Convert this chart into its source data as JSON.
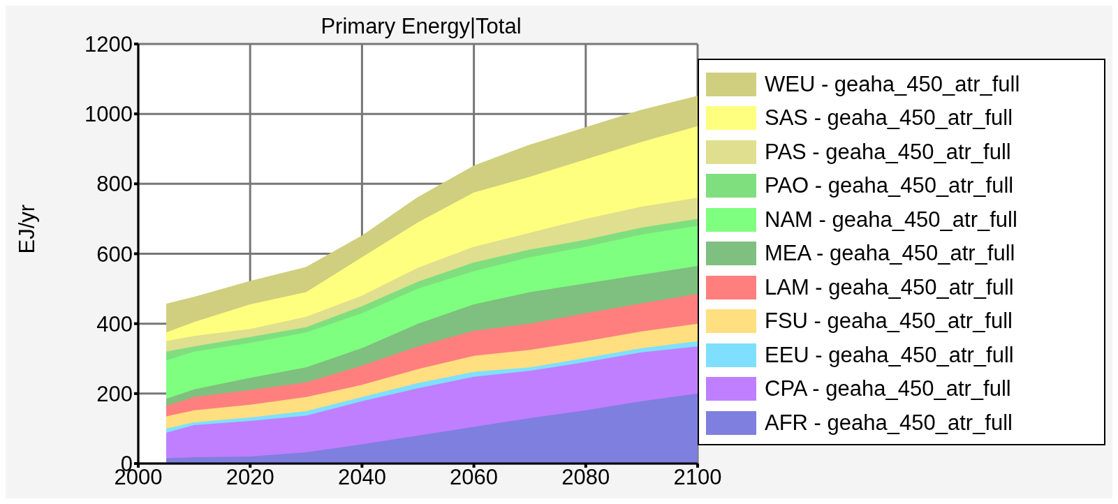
{
  "chart_data": {
    "type": "area",
    "stacked": true,
    "title": "Primary Energy|Total",
    "ylabel": "EJ/yr",
    "x": [
      2005,
      2010,
      2020,
      2030,
      2040,
      2050,
      2060,
      2070,
      2080,
      2090,
      2100
    ],
    "xlim": [
      2000,
      2100
    ],
    "xticks": [
      2000,
      2020,
      2040,
      2060,
      2080,
      2100
    ],
    "ylim": [
      0,
      1200
    ],
    "yticks": [
      0,
      200,
      400,
      600,
      800,
      1000,
      1200
    ],
    "grid": true,
    "legend": "right",
    "series": [
      {
        "name": "AFR - geaha_450_atr_full",
        "color": "#7f7fdf",
        "values": [
          15,
          18,
          20,
          32,
          55,
          80,
          105,
          130,
          152,
          178,
          200
        ]
      },
      {
        "name": "CPA - geaha_450_atr_full",
        "color": "#bf7fff",
        "values": [
          73,
          92,
          102,
          105,
          123,
          135,
          143,
          135,
          138,
          140,
          135
        ]
      },
      {
        "name": "EEU - geaha_450_atr_full",
        "color": "#7fdfff",
        "values": [
          12,
          8,
          10,
          13,
          12,
          15,
          14,
          10,
          12,
          12,
          15
        ]
      },
      {
        "name": "FSU - geaha_450_atr_full",
        "color": "#ffdf7f",
        "values": [
          35,
          34,
          36,
          40,
          35,
          40,
          46,
          50,
          48,
          48,
          50
        ]
      },
      {
        "name": "LAM - geaha_450_atr_full",
        "color": "#ff7f7f",
        "values": [
          30,
          38,
          42,
          42,
          55,
          65,
          72,
          75,
          80,
          80,
          85
        ]
      },
      {
        "name": "MEA - geaha_450_atr_full",
        "color": "#7fbf7f",
        "values": [
          20,
          22,
          35,
          43,
          50,
          65,
          75,
          90,
          85,
          82,
          80
        ]
      },
      {
        "name": "NAM - geaha_450_atr_full",
        "color": "#7fff7f",
        "values": [
          110,
          108,
          100,
          100,
          100,
          100,
          95,
          100,
          105,
          115,
          115
        ]
      },
      {
        "name": "PAO - geaha_450_atr_full",
        "color": "#7fdf7f",
        "values": [
          25,
          15,
          17,
          15,
          20,
          20,
          25,
          22,
          20,
          20,
          20
        ]
      },
      {
        "name": "PAS - geaha_450_atr_full",
        "color": "#dfdf8f",
        "values": [
          30,
          30,
          23,
          30,
          30,
          40,
          45,
          48,
          60,
          60,
          60
        ]
      },
      {
        "name": "SAS - geaha_450_atr_full",
        "color": "#ffff7f",
        "values": [
          25,
          40,
          70,
          70,
          110,
          130,
          155,
          160,
          170,
          185,
          205
        ]
      },
      {
        "name": "WEU - geaha_450_atr_full",
        "color": "#cfcf7f",
        "values": [
          80,
          70,
          65,
          70,
          60,
          70,
          75,
          90,
          90,
          90,
          85
        ]
      }
    ]
  }
}
